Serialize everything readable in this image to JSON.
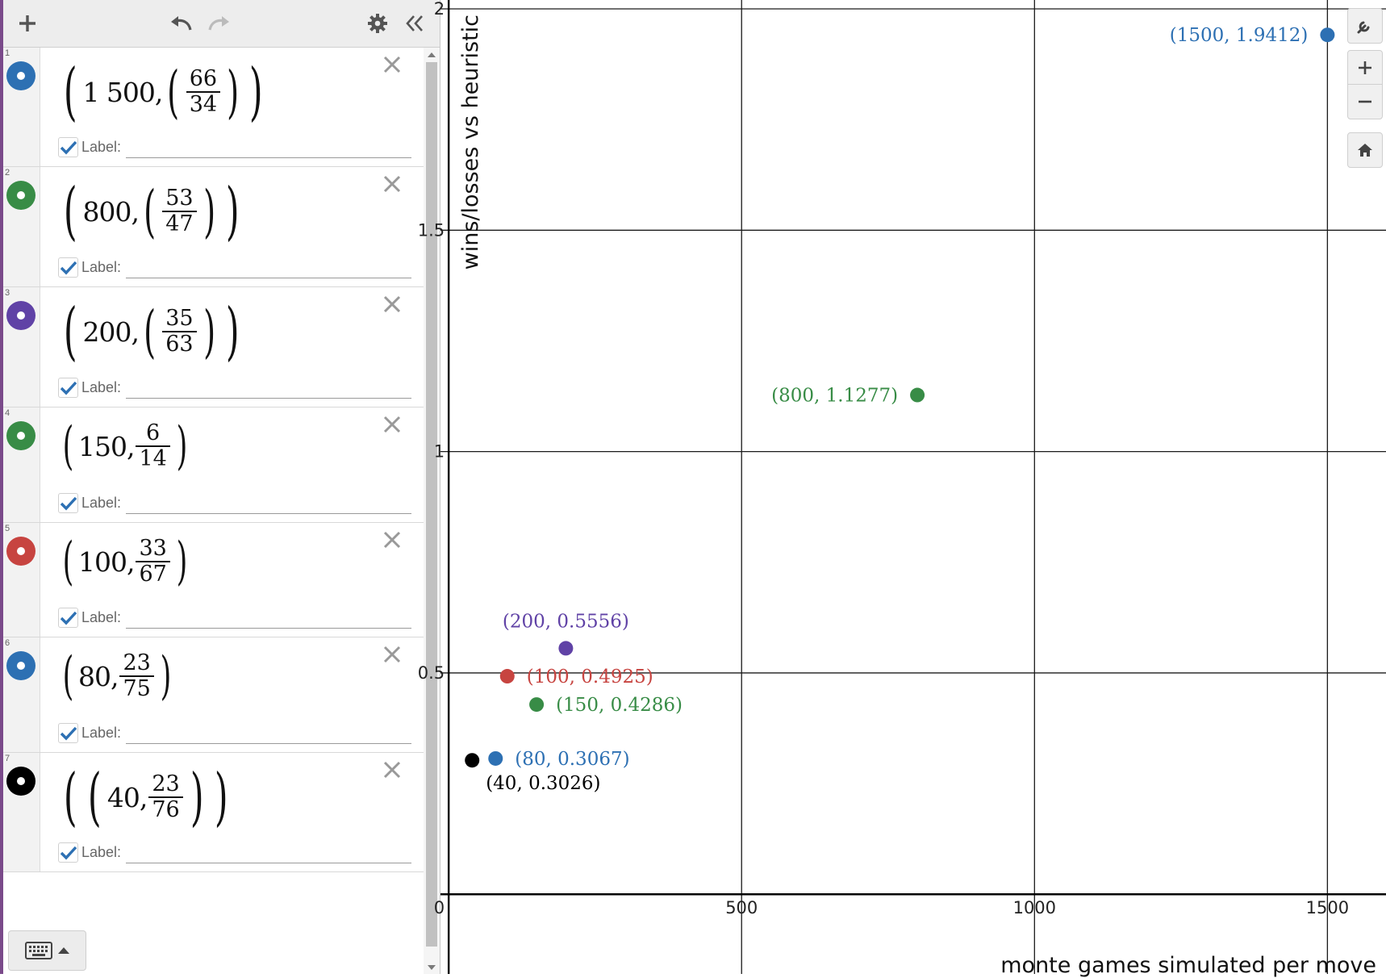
{
  "toolbar": {
    "add_icon": "plus-icon",
    "undo_icon": "undo-icon",
    "redo_icon": "redo-icon",
    "settings_icon": "gear-icon",
    "collapse_icon": "double-chevron-left-icon"
  },
  "expressions": [
    {
      "index": "1",
      "color": "#2d70b3",
      "x": "1 500",
      "frac_num": "66",
      "frac_den": "34",
      "extra_parens": "inner",
      "label_text": "Label:",
      "label_checked": true
    },
    {
      "index": "2",
      "color": "#388c46",
      "x": "800",
      "frac_num": "53",
      "frac_den": "47",
      "extra_parens": "inner",
      "label_text": "Label:",
      "label_checked": true
    },
    {
      "index": "3",
      "color": "#6042a6",
      "x": "200",
      "frac_num": "35",
      "frac_den": "63",
      "extra_parens": "inner",
      "label_text": "Label:",
      "label_checked": true
    },
    {
      "index": "4",
      "color": "#388c46",
      "x": "150",
      "frac_num": "6",
      "frac_den": "14",
      "extra_parens": "none",
      "label_text": "Label:",
      "label_checked": true
    },
    {
      "index": "5",
      "color": "#c74440",
      "x": "100",
      "frac_num": "33",
      "frac_den": "67",
      "extra_parens": "none",
      "label_text": "Label:",
      "label_checked": true
    },
    {
      "index": "6",
      "color": "#2d70b3",
      "x": "80",
      "frac_num": "23",
      "frac_den": "75",
      "extra_parens": "none",
      "label_text": "Label:",
      "label_checked": true
    },
    {
      "index": "7",
      "color": "#000000",
      "x": "40",
      "frac_num": "23",
      "frac_den": "76",
      "extra_parens": "outer",
      "label_text": "Label:",
      "label_checked": true
    }
  ],
  "keyboard": {
    "icon": "keyboard-icon",
    "arrow_icon": "caret-up-icon"
  },
  "graph_tools": {
    "wrench_icon": "wrench-icon",
    "zoom_in_icon": "plus-icon",
    "zoom_out_icon": "minus-icon",
    "home_icon": "home-icon"
  },
  "chart_data": {
    "type": "scatter",
    "xlabel": "monte games simulated per move",
    "ylabel": "wins/losses vs heuristic",
    "xlim": [
      -14,
      1600
    ],
    "ylim": [
      -0.18,
      2.02
    ],
    "x_ticks": [
      0,
      500,
      1000,
      1500
    ],
    "x_tick_labels": [
      "0",
      "500",
      "1000",
      "1500"
    ],
    "y_ticks": [
      0.5,
      1,
      1.5,
      2
    ],
    "y_tick_labels": [
      "0.5",
      "1",
      "1.5",
      "2"
    ],
    "grid": true,
    "points": [
      {
        "x": 1500,
        "y": 1.9412,
        "label": "(1500, 1.9412)",
        "color": "#2d70b3",
        "label_side": "left"
      },
      {
        "x": 800,
        "y": 1.1277,
        "label": "(800, 1.1277)",
        "color": "#388c46",
        "label_side": "left"
      },
      {
        "x": 200,
        "y": 0.5556,
        "label": "(200, 0.5556)",
        "color": "#6042a6",
        "label_side": "above"
      },
      {
        "x": 150,
        "y": 0.4286,
        "label": "(150, 0.4286)",
        "color": "#388c46",
        "label_side": "right"
      },
      {
        "x": 100,
        "y": 0.4925,
        "label": "(100, 0.4925)",
        "color": "#c74440",
        "label_side": "right"
      },
      {
        "x": 80,
        "y": 0.3067,
        "label": "(80, 0.3067)",
        "color": "#2d70b3",
        "label_side": "right"
      },
      {
        "x": 40,
        "y": 0.3026,
        "label": "(40, 0.3026)",
        "color": "#000000",
        "label_side": "below"
      }
    ]
  }
}
